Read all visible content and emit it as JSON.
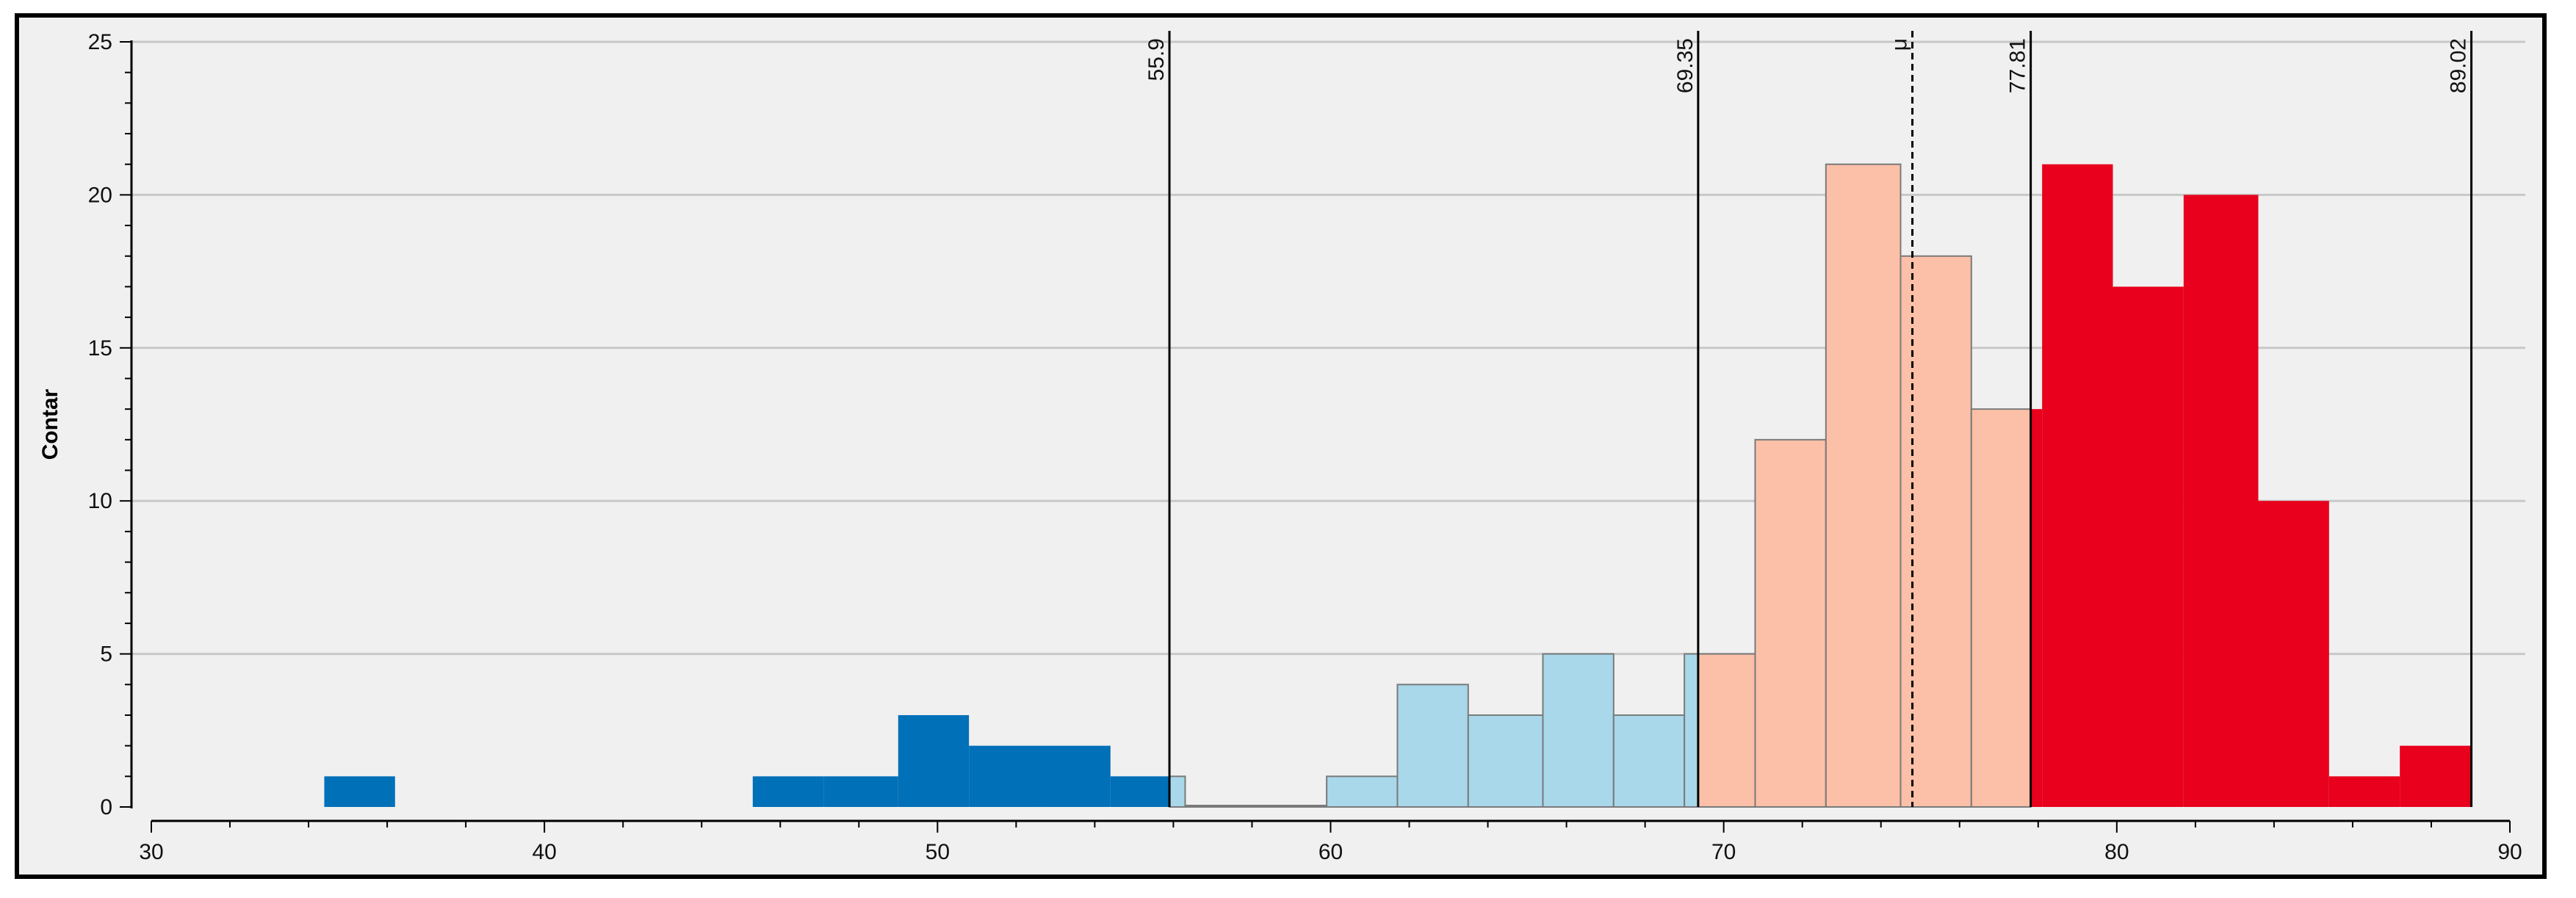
{
  "chart_data": {
    "type": "bar",
    "title": "",
    "xlabel": "",
    "ylabel": "Contar",
    "xlim": [
      30,
      90
    ],
    "ylim": [
      0,
      25
    ],
    "x_ticks": [
      30,
      40,
      50,
      60,
      70,
      80,
      90
    ],
    "y_ticks": [
      0,
      5,
      10,
      15,
      20,
      25
    ],
    "grid": "horizontal",
    "bin_width": 1.82,
    "bins": [
      {
        "x0": 34.4,
        "x1": 36.2,
        "count": 1,
        "color": "#0070b8"
      },
      {
        "x0": 45.3,
        "x1": 47.1,
        "count": 1,
        "color": "#0070b8"
      },
      {
        "x0": 47.1,
        "x1": 49.0,
        "count": 1,
        "color": "#0070b8"
      },
      {
        "x0": 49.0,
        "x1": 50.8,
        "count": 3,
        "color": "#0070b8"
      },
      {
        "x0": 50.8,
        "x1": 52.6,
        "count": 2,
        "color": "#0070b8"
      },
      {
        "x0": 52.6,
        "x1": 54.4,
        "count": 2,
        "color": "#0070b8"
      },
      {
        "x0": 54.4,
        "x1": 55.9,
        "count": 1,
        "color": "#0070b8"
      },
      {
        "x0": 55.9,
        "x1": 56.3,
        "count": 1,
        "color": "#a8d8ea"
      },
      {
        "x0": 56.3,
        "x1": 58.1,
        "count": 0,
        "color": "#a8d8ea"
      },
      {
        "x0": 58.1,
        "x1": 59.9,
        "count": 0,
        "color": "#a8d8ea"
      },
      {
        "x0": 59.9,
        "x1": 61.7,
        "count": 1,
        "color": "#a8d8ea"
      },
      {
        "x0": 61.7,
        "x1": 63.5,
        "count": 4,
        "color": "#a8d8ea"
      },
      {
        "x0": 63.5,
        "x1": 65.4,
        "count": 3,
        "color": "#a8d8ea"
      },
      {
        "x0": 65.4,
        "x1": 67.2,
        "count": 5,
        "color": "#a8d8ea"
      },
      {
        "x0": 67.2,
        "x1": 69.0,
        "count": 3,
        "color": "#a8d8ea"
      },
      {
        "x0": 69.0,
        "x1": 69.35,
        "count": 5,
        "color": "#a8d8ea"
      },
      {
        "x0": 69.35,
        "x1": 70.8,
        "count": 5,
        "color": "#fcc0a8"
      },
      {
        "x0": 70.8,
        "x1": 72.6,
        "count": 12,
        "color": "#fcc0a8"
      },
      {
        "x0": 72.6,
        "x1": 74.5,
        "count": 21,
        "color": "#fcc0a8"
      },
      {
        "x0": 74.5,
        "x1": 76.3,
        "count": 18,
        "color": "#fcc0a8"
      },
      {
        "x0": 76.3,
        "x1": 77.81,
        "count": 13,
        "color": "#fcc0a8"
      },
      {
        "x0": 77.81,
        "x1": 78.1,
        "count": 13,
        "color": "#e8001c"
      },
      {
        "x0": 78.1,
        "x1": 79.9,
        "count": 21,
        "color": "#e8001c"
      },
      {
        "x0": 79.9,
        "x1": 81.7,
        "count": 17,
        "color": "#e8001c"
      },
      {
        "x0": 81.7,
        "x1": 83.6,
        "count": 20,
        "color": "#e8001c"
      },
      {
        "x0": 83.6,
        "x1": 85.4,
        "count": 10,
        "color": "#e8001c"
      },
      {
        "x0": 85.4,
        "x1": 87.2,
        "count": 1,
        "color": "#e8001c"
      },
      {
        "x0": 87.2,
        "x1": 89.02,
        "count": 2,
        "color": "#e8001c"
      }
    ],
    "markers": [
      {
        "value": 55.9,
        "label": "55.9",
        "style": "solid"
      },
      {
        "value": 69.35,
        "label": "69.35",
        "style": "solid"
      },
      {
        "value": 74.8,
        "label": "μ",
        "style": "dashed"
      },
      {
        "value": 77.81,
        "label": "77.81",
        "style": "solid"
      },
      {
        "value": 89.02,
        "label": "89.02",
        "style": "solid"
      }
    ],
    "colors": {
      "dark_blue": "#0070b8",
      "light_blue": "#a8d8ea",
      "light_salmon": "#fcc0a8",
      "red": "#e8001c",
      "background": "#f0f0f0",
      "grid": "#c8c8c8"
    }
  }
}
